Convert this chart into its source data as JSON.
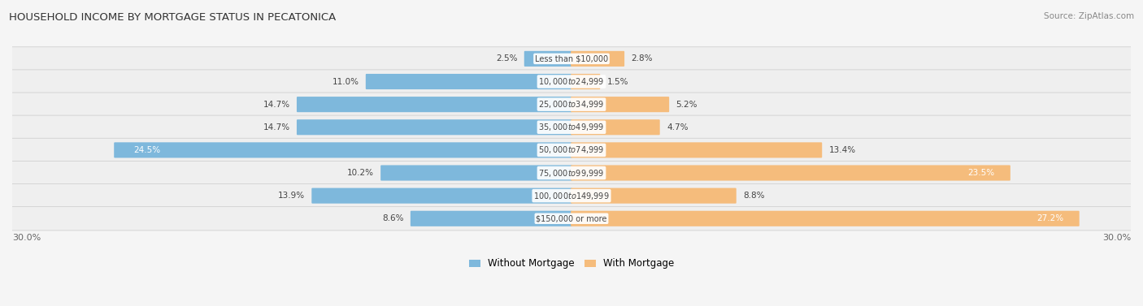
{
  "title": "HOUSEHOLD INCOME BY MORTGAGE STATUS IN PECATONICA",
  "source": "Source: ZipAtlas.com",
  "categories": [
    "Less than $10,000",
    "$10,000 to $24,999",
    "$25,000 to $34,999",
    "$35,000 to $49,999",
    "$50,000 to $74,999",
    "$75,000 to $99,999",
    "$100,000 to $149,999",
    "$150,000 or more"
  ],
  "without_mortgage": [
    2.5,
    11.0,
    14.7,
    14.7,
    24.5,
    10.2,
    13.9,
    8.6
  ],
  "with_mortgage": [
    2.8,
    1.5,
    5.2,
    4.7,
    13.4,
    23.5,
    8.8,
    27.2
  ],
  "color_without": "#7eb8dc",
  "color_with": "#f5bc7c",
  "xlim": 30.0,
  "row_bg_color": "#efefef",
  "legend_label_without": "Without Mortgage",
  "legend_label_with": "With Mortgage",
  "axis_label_left": "30.0%",
  "axis_label_right": "30.0%",
  "inside_label_threshold_without": 18.0,
  "inside_label_threshold_with": 18.0
}
